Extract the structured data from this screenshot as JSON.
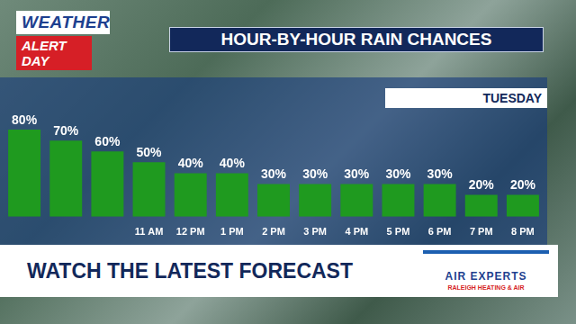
{
  "header": {
    "logo_top": "WEATHER",
    "logo_bottom": "ALERT DAY"
  },
  "banner": "WATCH THE LATEST FORECAST",
  "sponsor": {
    "name": "AIR EXPERTS",
    "tagline": "RALEIGH HEATING & AIR"
  },
  "chart_data": {
    "type": "bar",
    "title": "HOUR-BY-HOUR RAIN CHANCES",
    "subtitle": "TUESDAY",
    "categories": [
      null,
      null,
      null,
      "11 AM",
      "12 PM",
      "1 PM",
      "2 PM",
      "3 PM",
      "4 PM",
      "5 PM",
      "6 PM",
      "7 PM",
      "8 PM"
    ],
    "values": [
      80,
      70,
      60,
      50,
      40,
      40,
      30,
      30,
      30,
      30,
      30,
      20,
      20
    ],
    "value_labels": [
      "80%",
      "70%",
      "60%",
      "50%",
      "40%",
      "40%",
      "30%",
      "30%",
      "30%",
      "30%",
      "30%",
      "20%",
      "20%"
    ],
    "data_labels": true,
    "color": "#1f9a1f",
    "ylim": [
      0,
      90
    ],
    "yticks": [
      0,
      90
    ],
    "grid": false,
    "tick_labels": "x"
  }
}
